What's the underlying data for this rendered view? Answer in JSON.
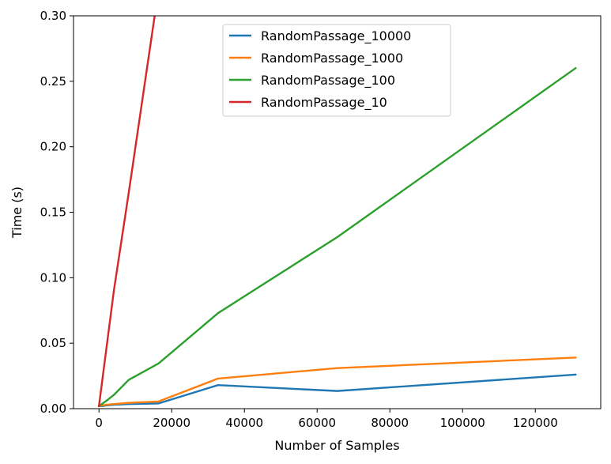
{
  "chart_data": {
    "type": "line",
    "title": "",
    "xlabel": "Number of Samples",
    "ylabel": "Time (s)",
    "xlim": [
      -7000,
      138000
    ],
    "ylim": [
      0,
      0.3
    ],
    "xticks": [
      0,
      20000,
      40000,
      60000,
      80000,
      100000,
      120000
    ],
    "xtick_labels": [
      "0",
      "20000",
      "40000",
      "60000",
      "80000",
      "100000",
      "120000"
    ],
    "yticks": [
      0,
      0.05,
      0.1,
      0.15,
      0.2,
      0.25,
      0.3
    ],
    "ytick_labels": [
      "0.00",
      "0.05",
      "0.10",
      "0.15",
      "0.20",
      "0.25",
      "0.30"
    ],
    "grid": false,
    "legend_position": "upper center",
    "series": [
      {
        "name": "RandomPassage_10000",
        "color": "#1f77b4",
        "x": [
          0,
          1024,
          2048,
          4096,
          8192,
          16384,
          32768,
          65536,
          131072
        ],
        "y": [
          0.002,
          0.002,
          0.0025,
          0.003,
          0.0035,
          0.004,
          0.018,
          0.0135,
          0.026
        ]
      },
      {
        "name": "RandomPassage_1000",
        "color": "#ff7f0e",
        "x": [
          0,
          1024,
          2048,
          4096,
          8192,
          16384,
          32768,
          65536,
          131072
        ],
        "y": [
          0.002,
          0.0025,
          0.003,
          0.0035,
          0.0045,
          0.0055,
          0.023,
          0.031,
          0.039
        ]
      },
      {
        "name": "RandomPassage_100",
        "color": "#2ca02c",
        "x": [
          0,
          1024,
          2048,
          4096,
          8192,
          16384,
          32768,
          65536,
          131072
        ],
        "y": [
          0.002,
          0.004,
          0.006,
          0.0105,
          0.022,
          0.0345,
          0.073,
          0.131,
          0.26
        ]
      },
      {
        "name": "RandomPassage_10",
        "color": "#d62728",
        "x": [
          0,
          4096,
          8192,
          16384
        ],
        "y": [
          0.002,
          0.09,
          0.165,
          0.32
        ]
      }
    ]
  }
}
